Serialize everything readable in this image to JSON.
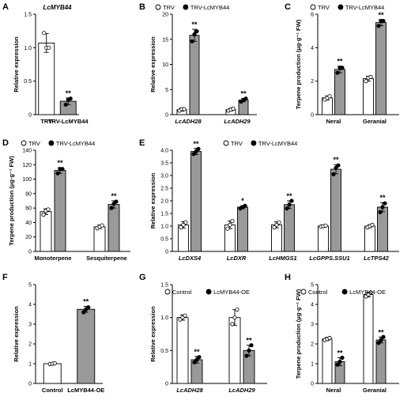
{
  "chart_data": [
    {
      "panel": "A",
      "type": "bar",
      "title": "LcMYB44",
      "ylabel": "Relative expression",
      "ylim": [
        0,
        1.5
      ],
      "yticks": [
        0,
        0.5,
        1.0,
        1.5
      ],
      "categories": [
        "TRV",
        "TRV-LcMYB44"
      ],
      "series": [
        {
          "values": [
            1.07,
            0.2
          ],
          "errors": [
            0.14,
            0.05
          ],
          "fills": [
            "#ffffff",
            "#999999"
          ]
        }
      ],
      "sig": [
        "",
        "**"
      ],
      "points": [
        [
          1.22,
          1.0,
          1.0
        ],
        [
          0.15,
          0.22,
          0.24
        ]
      ]
    },
    {
      "panel": "B",
      "type": "bar",
      "title": "",
      "ylabel": "Relative expression",
      "ylim": [
        0,
        20
      ],
      "yticks": [
        0,
        5,
        10,
        15,
        20
      ],
      "categories": [
        "LcADH28",
        "LcADH29"
      ],
      "legend": [
        "TRV",
        "TRV-LcMYB44"
      ],
      "series": [
        {
          "name": "TRV",
          "values": [
            1.0,
            1.0
          ],
          "errors": [
            0.3,
            0.25
          ],
          "fill": "#ffffff"
        },
        {
          "name": "TRV-LcMYB44",
          "values": [
            15.8,
            2.9
          ],
          "errors": [
            1.2,
            0.35
          ],
          "fill": "#999999"
        }
      ],
      "sig": [
        [
          "",
          "**"
        ],
        [
          "",
          "**"
        ]
      ],
      "points": [
        [
          [
            0.8,
            1.1,
            1.1
          ],
          [
            14.6,
            16.0,
            16.6
          ]
        ],
        [
          [
            0.8,
            1.0,
            1.2
          ],
          [
            2.6,
            2.9,
            3.2
          ]
        ]
      ]
    },
    {
      "panel": "C",
      "type": "bar",
      "title": "",
      "ylabel": "Terpene production (μg·g⁻¹ FW)",
      "ylim": [
        0,
        6
      ],
      "yticks": [
        0,
        2,
        4,
        6
      ],
      "categories": [
        "Neral",
        "Geranial"
      ],
      "legend": [
        "TRV",
        "TRV-LcMYB44"
      ],
      "series": [
        {
          "name": "TRV",
          "values": [
            1.0,
            2.15
          ],
          "errors": [
            0.12,
            0.15
          ],
          "fill": "#ffffff"
        },
        {
          "name": "TRV-LcMYB44",
          "values": [
            2.7,
            5.5
          ],
          "errors": [
            0.2,
            0.18
          ],
          "fill": "#999999"
        }
      ],
      "sig": [
        [
          "",
          "**"
        ],
        [
          "",
          "**"
        ]
      ],
      "points": [
        [
          [
            0.9,
            1.0,
            1.1
          ],
          [
            2.5,
            2.8,
            2.8
          ]
        ],
        [
          [
            2.0,
            2.2,
            2.25
          ],
          [
            5.3,
            5.6,
            5.6
          ]
        ]
      ]
    },
    {
      "panel": "D",
      "type": "bar",
      "title": "",
      "ylabel": "Terpene production (μg·g⁻¹ FW)",
      "ylim": [
        0,
        140
      ],
      "yticks": [
        0,
        20,
        40,
        60,
        80,
        100,
        120,
        140
      ],
      "categories": [
        "Monoterpene",
        "Sesquiterpene"
      ],
      "legend": [
        "TRV",
        "TRV-LcMYB44"
      ],
      "series": [
        {
          "name": "TRV",
          "values": [
            55,
            34
          ],
          "errors": [
            4,
            2.5
          ],
          "fill": "#ffffff"
        },
        {
          "name": "TRV-LcMYB44",
          "values": [
            112,
            65
          ],
          "errors": [
            4,
            5
          ],
          "fill": "#999999"
        }
      ],
      "sig": [
        [
          "",
          "**"
        ],
        [
          "",
          "**"
        ]
      ],
      "points": [
        [
          [
            51,
            56,
            58
          ],
          [
            108,
            114,
            114
          ]
        ],
        [
          [
            32,
            34,
            36
          ],
          [
            60,
            66,
            69
          ]
        ]
      ]
    },
    {
      "panel": "E",
      "type": "bar",
      "title": "",
      "ylabel": "Relative expression",
      "ylim": [
        0,
        4
      ],
      "yticks": [
        0,
        0.5,
        1.0,
        1.5,
        2.0,
        2.5,
        3.0,
        3.5,
        4.0
      ],
      "categories": [
        "LcDXS4",
        "LcDXR",
        "LcHMGS1",
        "LcGPPS.SSU1",
        "LcTPS42"
      ],
      "legend": [
        "TRV",
        "TRV-LcMYB44"
      ],
      "series": [
        {
          "name": "TRV",
          "values": [
            1.05,
            1.05,
            1.05,
            1.0,
            1.0
          ],
          "errors": [
            0.13,
            0.15,
            0.12,
            0.05,
            0.06
          ],
          "fill": "#ffffff"
        },
        {
          "name": "TRV-LcMYB44",
          "values": [
            3.95,
            1.75,
            1.85,
            3.25,
            1.75
          ],
          "errors": [
            0.12,
            0.06,
            0.15,
            0.18,
            0.18
          ],
          "fill": "#999999"
        }
      ],
      "sig": [
        [
          "",
          "**"
        ],
        [
          "",
          "*"
        ],
        [
          "",
          "**"
        ],
        [
          "",
          "**"
        ],
        [
          "",
          "**"
        ]
      ],
      "points": [
        [
          [
            0.95,
            1.05,
            1.15
          ],
          [
            3.85,
            3.95,
            4.05
          ]
        ],
        [
          [
            0.9,
            1.05,
            1.2
          ],
          [
            1.7,
            1.75,
            1.8
          ]
        ],
        [
          [
            0.95,
            1.05,
            1.15
          ],
          [
            1.7,
            1.85,
            2.0
          ]
        ],
        [
          [
            0.98,
            1.0,
            1.02
          ],
          [
            3.05,
            3.3,
            3.4
          ]
        ],
        [
          [
            0.95,
            1.0,
            1.05
          ],
          [
            1.55,
            1.75,
            1.9
          ]
        ]
      ]
    },
    {
      "panel": "F",
      "type": "bar",
      "title": "",
      "ylabel": "Relative expression",
      "ylim": [
        0,
        5
      ],
      "yticks": [
        0,
        1,
        2,
        3,
        4,
        5
      ],
      "categories": [
        "Control",
        "LcMYB44-OE"
      ],
      "series": [
        {
          "values": [
            1.0,
            3.75
          ],
          "errors": [
            0.04,
            0.15
          ],
          "fills": [
            "#ffffff",
            "#999999"
          ]
        }
      ],
      "sig": [
        "",
        "**"
      ],
      "points": [
        [
          0.98,
          1.0,
          1.02
        ],
        [
          3.6,
          3.75,
          3.85
        ]
      ]
    },
    {
      "panel": "G",
      "type": "bar",
      "title": "",
      "ylabel": "Relative expression",
      "ylim": [
        0,
        1.5
      ],
      "yticks": [
        0,
        0.5,
        1.0,
        1.5
      ],
      "categories": [
        "LcADH28",
        "LcADH29"
      ],
      "legend": [
        "Control",
        "LcMYB44-OE"
      ],
      "series": [
        {
          "name": "Control",
          "values": [
            1.0,
            1.0
          ],
          "errors": [
            0.04,
            0.12
          ],
          "fill": "#ffffff"
        },
        {
          "name": "LcMYB44-OE",
          "values": [
            0.36,
            0.5
          ],
          "errors": [
            0.05,
            0.08
          ],
          "fill": "#999999"
        }
      ],
      "sig": [
        [
          "",
          "**"
        ],
        [
          "",
          "**"
        ]
      ],
      "points": [
        [
          [
            0.97,
            1.0,
            1.03
          ],
          [
            0.32,
            0.36,
            0.4
          ]
        ],
        [
          [
            0.9,
            1.0,
            1.12
          ],
          [
            0.42,
            0.5,
            0.58
          ]
        ]
      ]
    },
    {
      "panel": "H",
      "type": "bar",
      "title": "",
      "ylabel": "Terpene production (μg·g⁻¹ FW)",
      "ylim": [
        0,
        5
      ],
      "yticks": [
        0,
        1,
        2,
        3,
        4,
        5
      ],
      "categories": [
        "Neral",
        "Geranial"
      ],
      "legend": [
        "Control",
        "LcMYB44-OE"
      ],
      "series": [
        {
          "name": "Control",
          "values": [
            2.25,
            4.5
          ],
          "errors": [
            0.08,
            0.12
          ],
          "fill": "#ffffff"
        },
        {
          "name": "LcMYB44-OE",
          "values": [
            1.1,
            2.2
          ],
          "errors": [
            0.2,
            0.15
          ],
          "fill": "#999999"
        }
      ],
      "sig": [
        [
          "",
          "**"
        ],
        [
          "",
          "**"
        ]
      ],
      "points": [
        [
          [
            2.2,
            2.25,
            2.3
          ],
          [
            0.95,
            1.1,
            1.3
          ]
        ],
        [
          [
            4.4,
            4.5,
            4.6
          ],
          [
            2.05,
            2.2,
            2.35
          ]
        ]
      ]
    }
  ]
}
